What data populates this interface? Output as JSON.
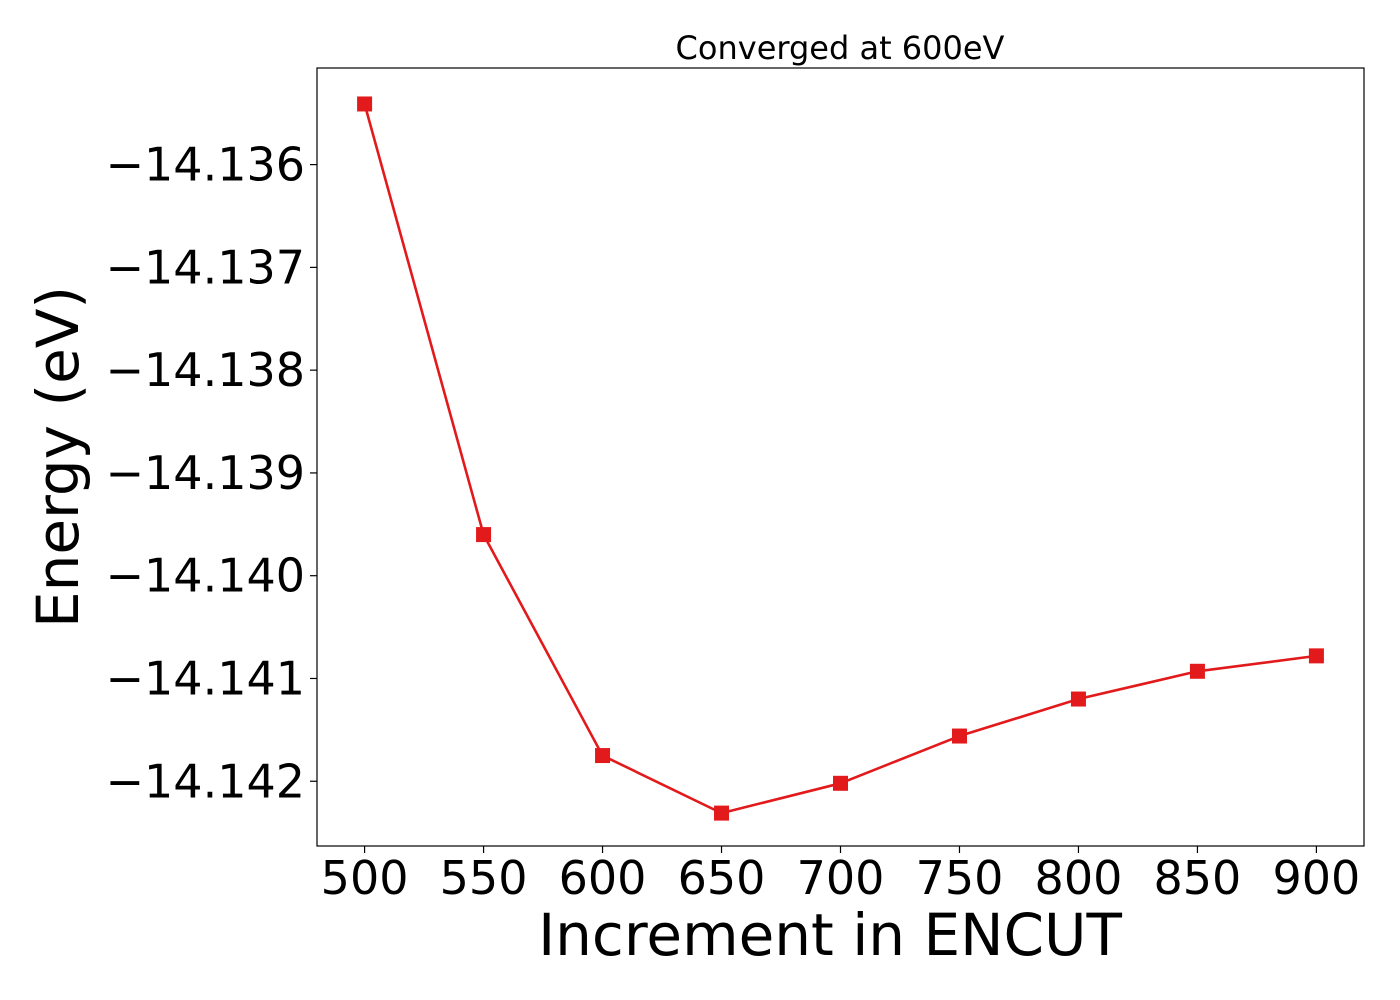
{
  "chart_data": {
    "type": "line",
    "title": "Converged at 600eV",
    "xlabel": "Increment in ENCUT",
    "ylabel": "Energy (eV)",
    "x": [
      500,
      550,
      600,
      650,
      700,
      750,
      800,
      850,
      900
    ],
    "xticks": [
      500,
      550,
      600,
      650,
      700,
      750,
      800,
      850,
      900
    ],
    "xtick_labels": [
      "500",
      "550",
      "600",
      "650",
      "700",
      "750",
      "800",
      "850",
      "900"
    ],
    "yticks": [
      -14.136,
      -14.137,
      -14.138,
      -14.139,
      -14.14,
      -14.141,
      -14.142
    ],
    "ytick_labels": [
      "−14.136",
      "−14.137",
      "−14.138",
      "−14.139",
      "−14.140",
      "−14.141",
      "−14.142"
    ],
    "xlim": [
      480,
      920
    ],
    "ylim": [
      -14.14263,
      -14.13506
    ],
    "grid": false,
    "series": [
      {
        "color": "#e31a1c",
        "marker": "square",
        "values": [
          -14.13541,
          -14.1396,
          -14.14175,
          -14.14231,
          -14.14202,
          -14.14156,
          -14.1412,
          -14.14093,
          -14.14078
        ]
      }
    ]
  }
}
